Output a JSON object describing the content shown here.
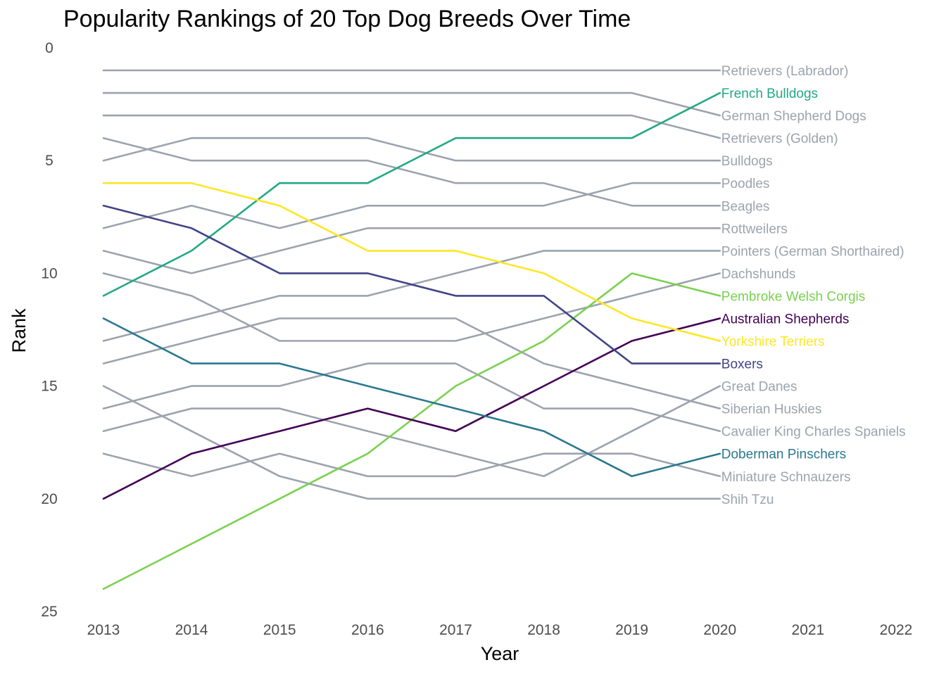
{
  "chart_data": {
    "type": "line",
    "title": "Popularity Rankings of 20 Top Dog Breeds Over Time",
    "xlabel": "Year",
    "ylabel": "Rank",
    "x": [
      2013,
      2014,
      2015,
      2016,
      2017,
      2018,
      2019,
      2020
    ],
    "x_ticks": [
      "2013",
      "2014",
      "2015",
      "2016",
      "2017",
      "2018",
      "2019",
      "2020",
      "2021",
      "2022"
    ],
    "y_ticks": [
      "0",
      "5",
      "10",
      "15",
      "20",
      "25"
    ],
    "xlim": [
      2013,
      2022
    ],
    "ylim": [
      0,
      25
    ],
    "y_reversed": true,
    "grid": false,
    "legend": "direct labels at line ends",
    "series": [
      {
        "name": "Retrievers (Labrador)",
        "color": "#9ca3ad",
        "values": [
          1,
          1,
          1,
          1,
          1,
          1,
          1,
          1
        ]
      },
      {
        "name": "French Bulldogs",
        "color": "#22a884",
        "values": [
          11,
          9,
          6,
          6,
          4,
          4,
          4,
          2
        ]
      },
      {
        "name": "German Shepherd Dogs",
        "color": "#9ca3ad",
        "values": [
          2,
          2,
          2,
          2,
          2,
          2,
          2,
          3
        ]
      },
      {
        "name": "Retrievers (Golden)",
        "color": "#9ca3ad",
        "values": [
          3,
          3,
          3,
          3,
          3,
          3,
          3,
          4
        ]
      },
      {
        "name": "Bulldogs",
        "color": "#9ca3ad",
        "values": [
          5,
          4,
          4,
          4,
          5,
          5,
          5,
          5
        ]
      },
      {
        "name": "Poodles",
        "color": "#9ca3ad",
        "values": [
          8,
          7,
          8,
          7,
          7,
          7,
          6,
          6
        ]
      },
      {
        "name": "Beagles",
        "color": "#9ca3ad",
        "values": [
          4,
          5,
          5,
          5,
          6,
          6,
          7,
          7
        ]
      },
      {
        "name": "Rottweilers",
        "color": "#9ca3ad",
        "values": [
          9,
          10,
          9,
          8,
          8,
          8,
          8,
          8
        ]
      },
      {
        "name": "Pointers (German Shorthaired)",
        "color": "#9ca3ad",
        "values": [
          13,
          12,
          11,
          11,
          10,
          9,
          9,
          9
        ]
      },
      {
        "name": "Dachshunds",
        "color": "#9ca3ad",
        "values": [
          10,
          11,
          13,
          13,
          13,
          12,
          11,
          10
        ]
      },
      {
        "name": "Pembroke Welsh Corgis",
        "color": "#7ad151",
        "values": [
          24,
          22,
          20,
          18,
          15,
          13,
          10,
          11
        ]
      },
      {
        "name": "Australian Shepherds",
        "color": "#440154",
        "values": [
          20,
          18,
          17,
          16,
          17,
          15,
          13,
          12
        ]
      },
      {
        "name": "Yorkshire Terriers",
        "color": "#fde725",
        "values": [
          6,
          6,
          7,
          9,
          9,
          10,
          12,
          13
        ]
      },
      {
        "name": "Boxers",
        "color": "#414487",
        "values": [
          7,
          8,
          10,
          10,
          11,
          11,
          14,
          14
        ]
      },
      {
        "name": "Great Danes",
        "color": "#9ca3ad",
        "values": [
          17,
          16,
          16,
          17,
          18,
          19,
          17,
          15
        ]
      },
      {
        "name": "Siberian Huskies",
        "color": "#9ca3ad",
        "values": [
          14,
          13,
          12,
          12,
          12,
          14,
          15,
          16
        ]
      },
      {
        "name": "Cavalier King Charles Spaniels",
        "color": "#9ca3ad",
        "values": [
          16,
          15,
          15,
          14,
          14,
          16,
          16,
          17
        ]
      },
      {
        "name": "Doberman Pinschers",
        "color": "#2a788e",
        "values": [
          12,
          14,
          14,
          15,
          16,
          17,
          19,
          18
        ]
      },
      {
        "name": "Miniature Schnauzers",
        "color": "#9ca3ad",
        "values": [
          18,
          19,
          18,
          19,
          19,
          18,
          18,
          19
        ]
      },
      {
        "name": "Shih Tzu",
        "color": "#9ca3ad",
        "values": [
          15,
          17,
          19,
          20,
          20,
          20,
          20,
          20
        ]
      }
    ]
  }
}
